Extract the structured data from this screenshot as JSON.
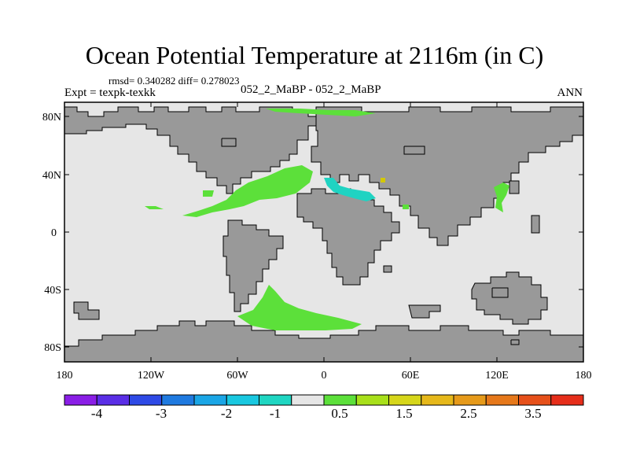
{
  "header": {
    "title": "Ocean Potential Temperature at 2116m (in C)",
    "stats": "rmsd= 0.340282 diff= 0.278023",
    "experiment": "Expt = texpk-texkk",
    "subtitle": "052_2_MaBP - 052_2_MaBP",
    "season": "ANN"
  },
  "map": {
    "lat_labels": [
      "80N",
      "40N",
      "0",
      "40S",
      "80S"
    ],
    "lon_labels": [
      "180",
      "120W",
      "60W",
      "0",
      "60E",
      "120E",
      "180"
    ],
    "colors": {
      "ocean_no_diff": "#e6e6e6",
      "land": "#999999",
      "coast": "#000000",
      "positive_small": "#5ce03a",
      "negative_small": "#1fd3c2",
      "positive_mid": "#d4c800"
    }
  },
  "colorbar": {
    "colors": [
      "#8a1ee6",
      "#5a2ee6",
      "#2e4ae6",
      "#1f7ae0",
      "#1aa6e6",
      "#19c8e0",
      "#1fd6c2",
      "#e6e6e6",
      "#5ce03a",
      "#a8e01a",
      "#d6d61a",
      "#e6b81a",
      "#e69a1a",
      "#e6781a",
      "#e6501a",
      "#e62e1a"
    ],
    "labels": [
      "-4",
      "-3",
      "-2",
      "-1",
      "0.5",
      "1.5",
      "2.5",
      "3.5"
    ]
  }
}
